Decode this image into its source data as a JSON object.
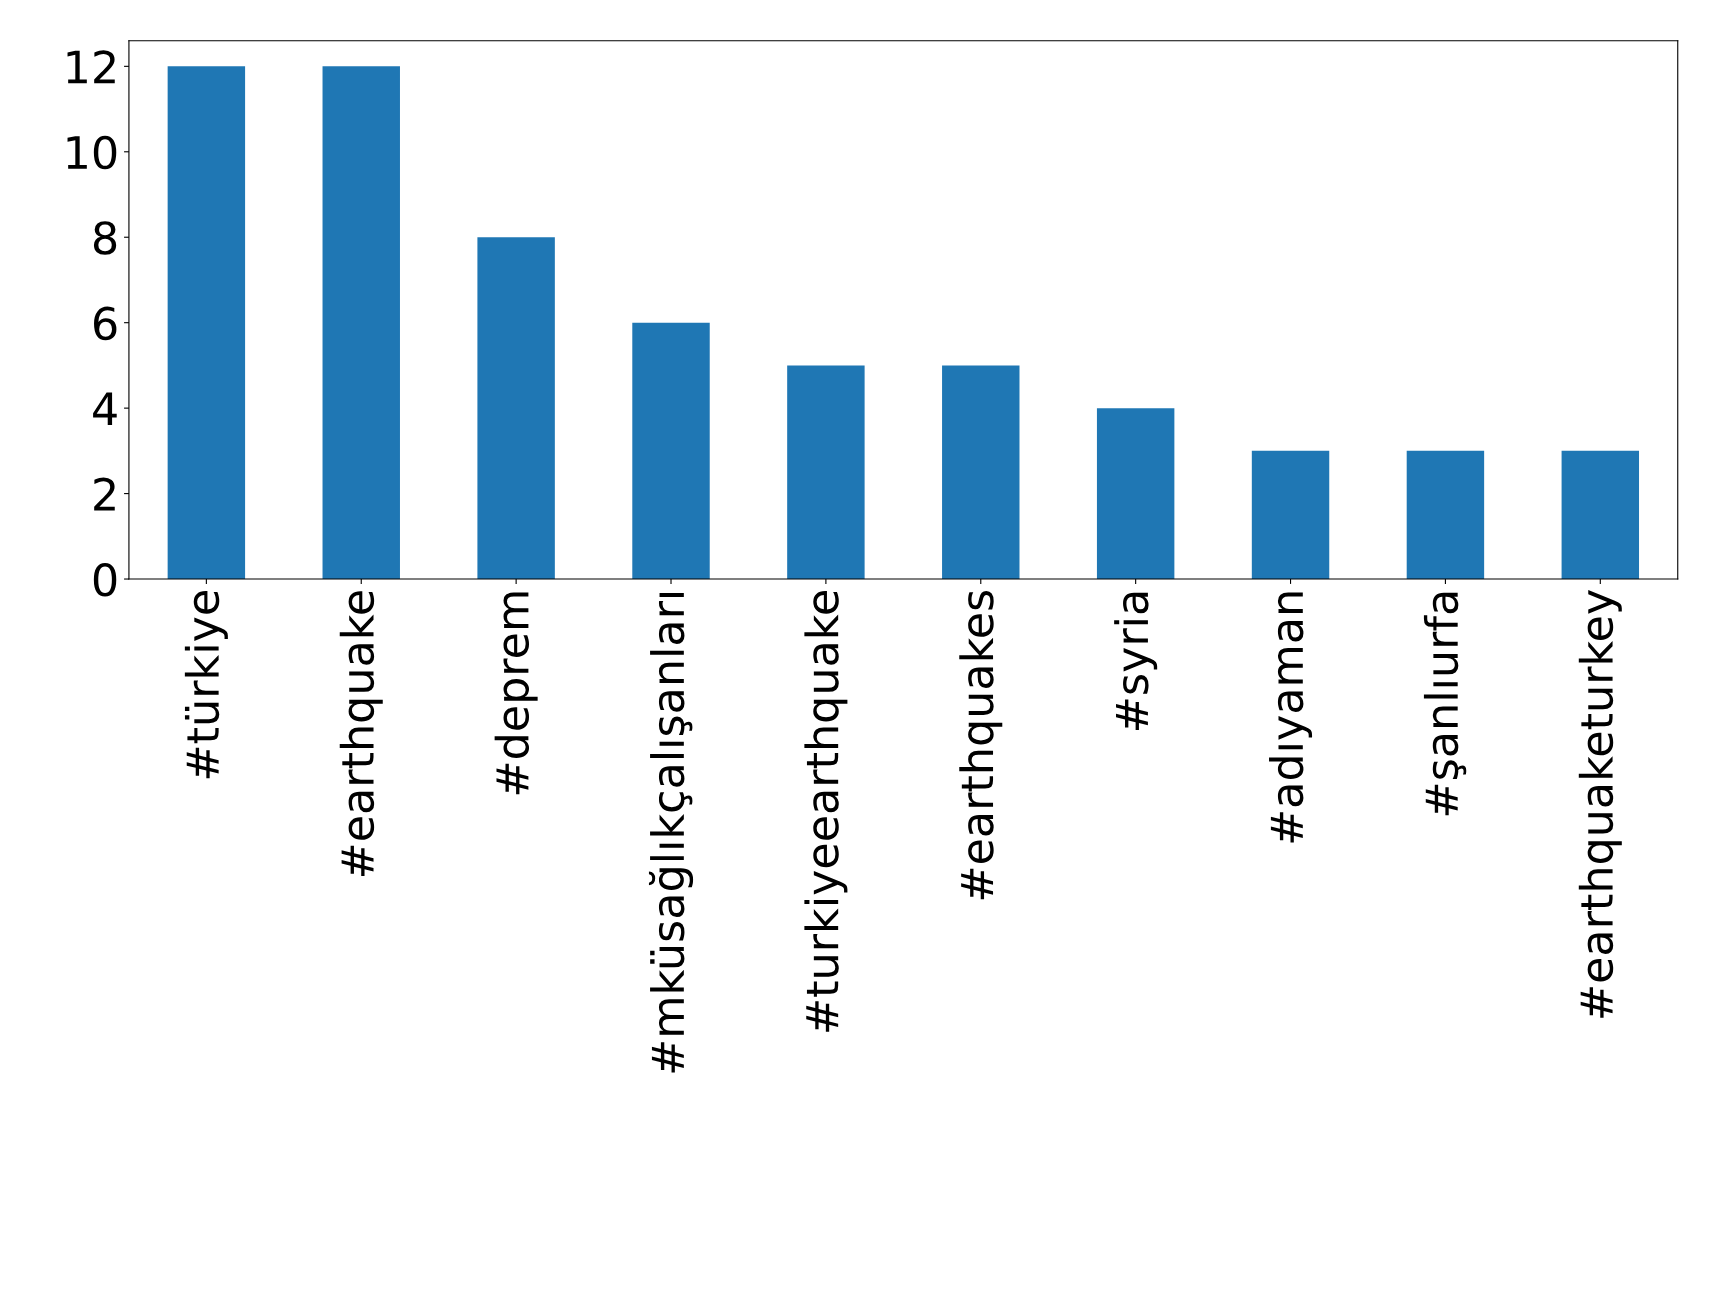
{
  "chart_data": {
    "type": "bar",
    "categories": [
      "#türkiye",
      "#earthquake",
      "#deprem",
      "#mküsağlıkçalışanları",
      "#turkiyeearthquake",
      "#earthquakes",
      "#syria",
      "#adıyaman",
      "#şanlıurfa",
      "#earthquaketurkey"
    ],
    "values": [
      12,
      12,
      8,
      6,
      5,
      5,
      4,
      3,
      3,
      3
    ],
    "color": "#1f77b4",
    "ylim": [
      0,
      12.6
    ],
    "yticks": [
      0,
      2,
      4,
      6,
      8,
      10,
      12
    ],
    "grid": false,
    "legend": false
  }
}
